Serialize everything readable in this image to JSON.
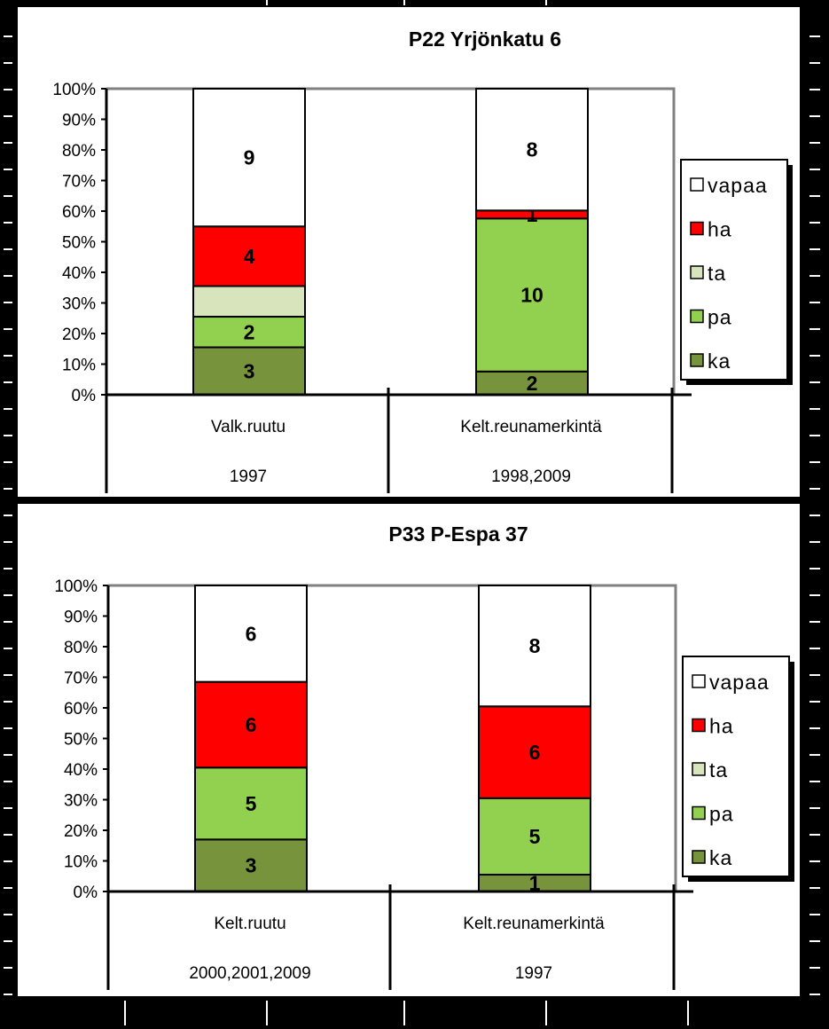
{
  "colors": {
    "vapaa": "#ffffff",
    "ha": "#ff0000",
    "ta": "#d8e4bc",
    "pa": "#92d050",
    "ka": "#77933c"
  },
  "chart_data": [
    {
      "type": "bar",
      "stacked": "percent",
      "title": "P22 Yrjönkatu  6",
      "y_ticks": [
        "0%",
        "10%",
        "20%",
        "30%",
        "40%",
        "50%",
        "60%",
        "70%",
        "80%",
        "90%",
        "100%"
      ],
      "ylim": [
        0,
        100
      ],
      "categories": [
        {
          "name": "Valk.ruutu",
          "years": "1997"
        },
        {
          "name": "Kelt.reunamerkintä",
          "years": "1998,2009"
        }
      ],
      "series": [
        {
          "name": "ka",
          "values": [
            15.5,
            7.6
          ],
          "labels": [
            "3",
            "2"
          ]
        },
        {
          "name": "pa",
          "values": [
            10,
            50
          ],
          "labels": [
            "2",
            "10"
          ]
        },
        {
          "name": "ta",
          "values": [
            10,
            0
          ],
          "labels": [
            "",
            ""
          ]
        },
        {
          "name": "ha",
          "values": [
            19.5,
            2.6
          ],
          "labels": [
            "4",
            "1"
          ]
        },
        {
          "name": "vapaa",
          "values": [
            45,
            39.8
          ],
          "labels": [
            "9",
            "8"
          ]
        }
      ],
      "legend": [
        "vapaa",
        "ha",
        "ta",
        "pa",
        "ka"
      ]
    },
    {
      "type": "bar",
      "stacked": "percent",
      "title": "P33 P-Espa 37",
      "y_ticks": [
        "0%",
        "10%",
        "20%",
        "30%",
        "40%",
        "50%",
        "60%",
        "70%",
        "80%",
        "90%",
        "100%"
      ],
      "ylim": [
        0,
        100
      ],
      "categories": [
        {
          "name": "Kelt.ruutu",
          "years": "2000,2001,2009"
        },
        {
          "name": "Kelt.reunamerkintä",
          "years": "1997"
        }
      ],
      "series": [
        {
          "name": "ka",
          "values": [
            17,
            5.5
          ],
          "labels": [
            "3",
            "1"
          ]
        },
        {
          "name": "pa",
          "values": [
            23.5,
            25
          ],
          "labels": [
            "5",
            "5"
          ]
        },
        {
          "name": "ta",
          "values": [
            0,
            0
          ],
          "labels": [
            "",
            ""
          ]
        },
        {
          "name": "ha",
          "values": [
            28,
            30
          ],
          "labels": [
            "6",
            "6"
          ]
        },
        {
          "name": "vapaa",
          "values": [
            31.5,
            39.5
          ],
          "labels": [
            "6",
            "8"
          ]
        }
      ],
      "legend": [
        "vapaa",
        "ha",
        "ta",
        "pa",
        "ka"
      ]
    }
  ]
}
